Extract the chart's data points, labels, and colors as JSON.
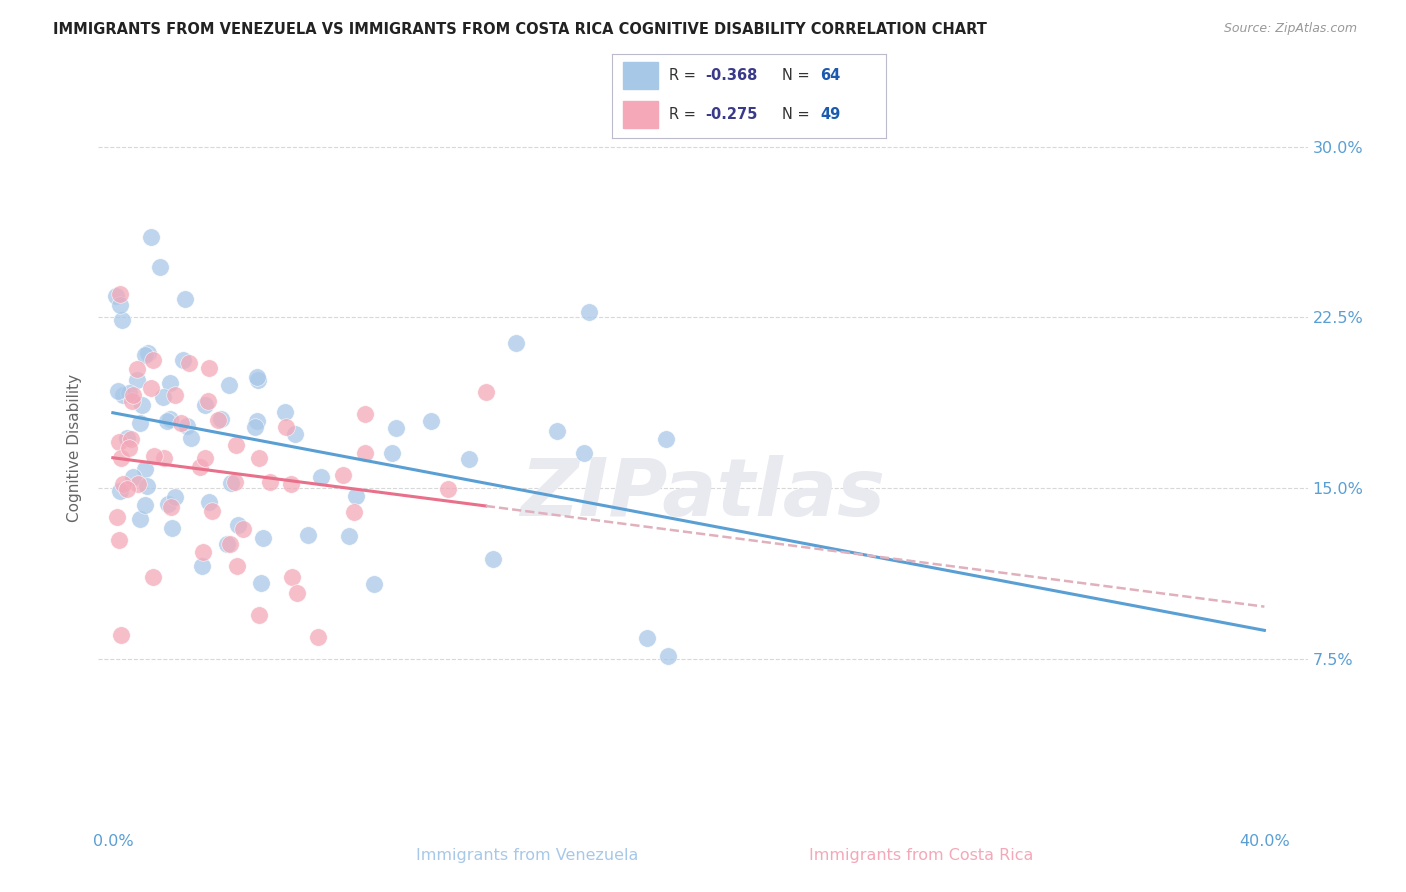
{
  "title": "IMMIGRANTS FROM VENEZUELA VS IMMIGRANTS FROM COSTA RICA COGNITIVE DISABILITY CORRELATION CHART",
  "source": "Source: ZipAtlas.com",
  "xlabel_venezuela": "Immigrants from Venezuela",
  "xlabel_costarica": "Immigrants from Costa Rica",
  "ylabel": "Cognitive Disability",
  "venezuela_R": -0.368,
  "venezuela_N": 64,
  "costarica_R": -0.275,
  "costarica_N": 49,
  "venezuela_color": "#a8c8e8",
  "costarica_color": "#f4a8b8",
  "venezuela_line_color": "#5a9fd4",
  "costarica_line_color": "#e8708a",
  "costarica_dash_color": "#e0b0bc",
  "background": "#ffffff",
  "grid_color": "#d8d8d8",
  "title_color": "#222222",
  "axis_color": "#5a9fd4",
  "legend_R_color": "#3a3a8a",
  "legend_N_color": "#1a5aaf",
  "watermark_color": "#e8eaf0",
  "ytick_positions": [
    0.075,
    0.15,
    0.225,
    0.3
  ],
  "ytick_labels": [
    "7.5%",
    "15.0%",
    "22.5%",
    "30.0%"
  ],
  "xtick_positions": [
    0.0,
    0.1,
    0.2,
    0.3,
    0.4
  ],
  "xtick_labels": [
    "0.0%",
    "",
    "",
    "",
    "40.0%"
  ]
}
